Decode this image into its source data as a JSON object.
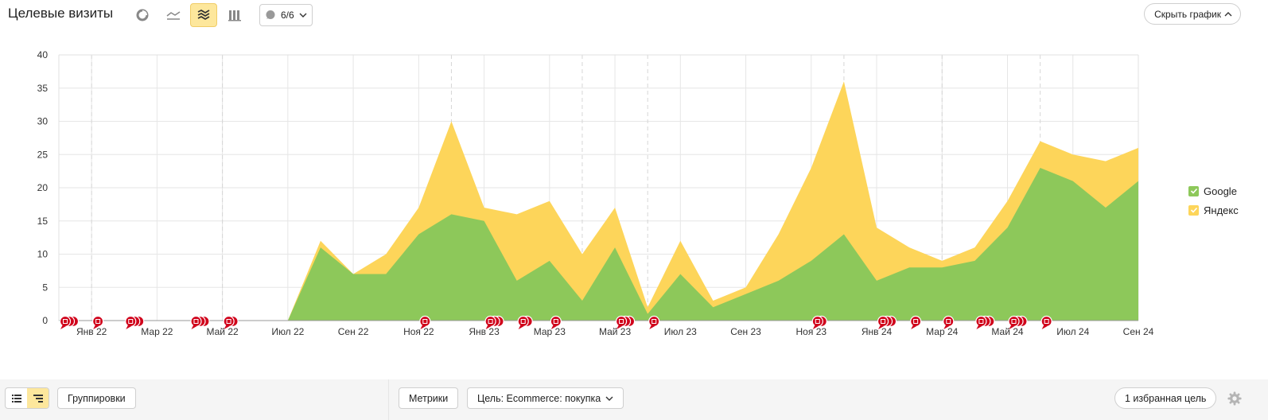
{
  "header": {
    "title": "Целевые визиты",
    "notes_count": "6/6",
    "hide_chart": "Скрыть график"
  },
  "toolbar_icons": [
    "pie-chart-icon",
    "line-chart-icon",
    "stacked-area-icon",
    "bar-chart-icon"
  ],
  "legend": [
    {
      "label": "Google",
      "color": "#8dc85a"
    },
    {
      "label": "Яндекс",
      "color": "#fdd55a"
    }
  ],
  "footer": {
    "groupings": "Группировки",
    "metrics": "Метрики",
    "goal": "Цель: Ecommerce: покупка",
    "favorites": "1 избранная цель"
  },
  "chart_data": {
    "type": "area",
    "stacked": true,
    "ylim": [
      0,
      40
    ],
    "yticks": [
      0,
      5,
      10,
      15,
      20,
      25,
      30,
      35,
      40
    ],
    "x": [
      "2021-12",
      "2022-01",
      "2022-02",
      "2022-03",
      "2022-04",
      "2022-05",
      "2022-06",
      "2022-07",
      "2022-08",
      "2022-09",
      "2022-10",
      "2022-11",
      "2022-12",
      "2023-01",
      "2023-02",
      "2023-03",
      "2023-04",
      "2023-05",
      "2023-06",
      "2023-07",
      "2023-08",
      "2023-09",
      "2023-10",
      "2023-11",
      "2023-12",
      "2024-01",
      "2024-02",
      "2024-03",
      "2024-04",
      "2024-05",
      "2024-06",
      "2024-07",
      "2024-08",
      "2024-09"
    ],
    "xticks": [
      "Янв 22",
      "Мар 22",
      "Май 22",
      "Июл 22",
      "Сен 22",
      "Ноя 22",
      "Янв 23",
      "Мар 23",
      "Май 23",
      "Июл 23",
      "Сен 23",
      "Ноя 23",
      "Янв 24",
      "Мар 24",
      "Май 24",
      "Июл 24",
      "Сен 24"
    ],
    "series": [
      {
        "name": "Google",
        "color": "#8dc85a",
        "values": [
          0,
          0,
          0,
          0,
          0,
          0,
          0,
          0,
          11,
          7,
          7,
          13,
          16,
          15,
          6,
          9,
          3,
          11,
          1,
          7,
          2,
          4,
          6,
          9,
          13,
          6,
          8,
          8,
          9,
          14,
          23,
          21,
          17,
          21
        ]
      },
      {
        "name": "Яндекс",
        "color": "#fdd55a",
        "values": [
          0,
          0,
          0,
          0,
          0,
          0,
          0,
          0,
          1,
          0,
          3,
          4,
          14,
          2,
          10,
          9,
          7,
          6,
          1,
          5,
          1,
          1,
          7,
          14,
          23,
          8,
          3,
          1,
          2,
          4,
          4,
          4,
          7,
          5
        ]
      }
    ],
    "grid": true,
    "legend_position": "right",
    "annotation_markers": [
      {
        "x": "2021-12",
        "count": 3
      },
      {
        "x": "2022-01",
        "count": 1
      },
      {
        "x": "2022-02",
        "count": 3
      },
      {
        "x": "2022-04",
        "count": 3
      },
      {
        "x": "2022-05",
        "count": 2
      },
      {
        "x": "2022-11",
        "count": 1
      },
      {
        "x": "2023-01",
        "count": 3
      },
      {
        "x": "2023-02",
        "count": 2
      },
      {
        "x": "2023-03",
        "count": 1
      },
      {
        "x": "2023-05",
        "count": 3
      },
      {
        "x": "2023-06",
        "count": 1
      },
      {
        "x": "2023-11",
        "count": 2
      },
      {
        "x": "2024-01",
        "count": 3
      },
      {
        "x": "2024-02",
        "count": 1
      },
      {
        "x": "2024-03",
        "count": 1
      },
      {
        "x": "2024-04",
        "count": 3
      },
      {
        "x": "2024-05",
        "count": 3
      },
      {
        "x": "2024-06",
        "count": 1
      }
    ]
  }
}
